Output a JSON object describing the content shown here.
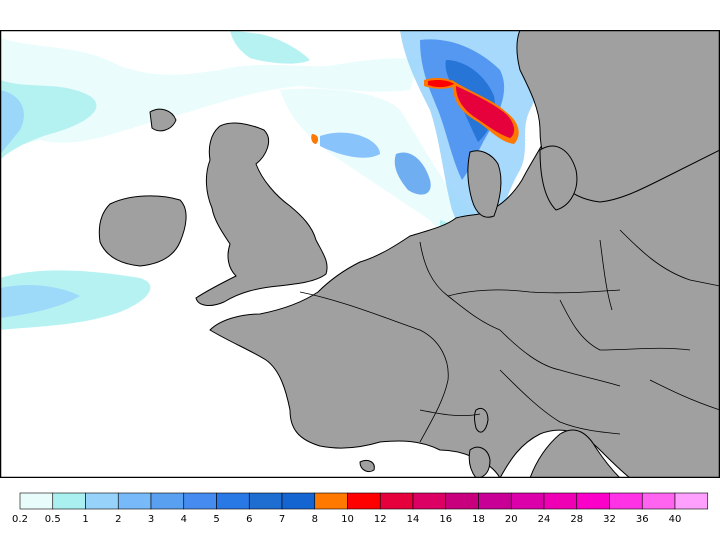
{
  "colors": {
    "sea": "#ffffff",
    "land": "#a0a0a0",
    "coast": "#000000",
    "frame": "#000000"
  },
  "legend": {
    "bins": [
      {
        "color": "#e8fcfc"
      },
      {
        "color": "#aaf0f0"
      },
      {
        "color": "#96d2fa"
      },
      {
        "color": "#78b9fa"
      },
      {
        "color": "#5aa0f0"
      },
      {
        "color": "#468cf0"
      },
      {
        "color": "#2878e6"
      },
      {
        "color": "#1e6ed2"
      },
      {
        "color": "#1464d2"
      },
      {
        "color": "#ff7800"
      },
      {
        "color": "#ff0000"
      },
      {
        "color": "#e6003c"
      },
      {
        "color": "#dc0064"
      },
      {
        "color": "#c8007d"
      },
      {
        "color": "#c80096"
      },
      {
        "color": "#dc00aa"
      },
      {
        "color": "#f000b4"
      },
      {
        "color": "#fa00c8"
      },
      {
        "color": "#ff32e6"
      },
      {
        "color": "#ff64f0"
      },
      {
        "color": "#ffa0ff"
      }
    ],
    "labels": [
      "0.2",
      "0.5",
      "1",
      "2",
      "3",
      "4",
      "5",
      "6",
      "7",
      "8",
      "10",
      "12",
      "14",
      "16",
      "18",
      "20",
      "24",
      "28",
      "32",
      "36",
      "40"
    ]
  }
}
